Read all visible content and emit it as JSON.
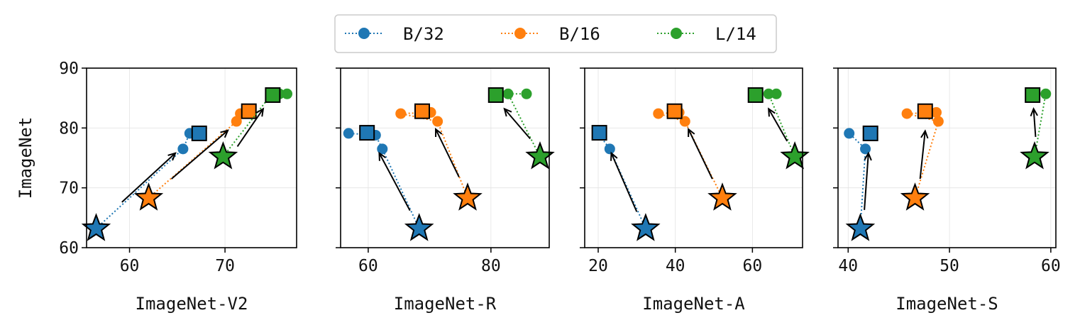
{
  "colors": {
    "B/32": "#1f77b4",
    "B/16": "#ff7f0e",
    "L/14": "#2ca02c"
  },
  "legend": {
    "placement": "top-center",
    "entries": [
      "B/32",
      "B/16",
      "L/14"
    ]
  },
  "chart_data": [
    {
      "type": "scatter",
      "xlabel": "ImageNet-V2",
      "ylabel": "ImageNet",
      "xlim": [
        55.5,
        77.5
      ],
      "ylim": [
        60,
        90
      ],
      "xticks": [
        60,
        70
      ],
      "yticks": [
        60,
        70,
        80,
        90
      ],
      "grid": true,
      "series": [
        {
          "name": "B/32",
          "points": [
            [
              65.6,
              76.5
            ],
            [
              66.3,
              79.1
            ],
            [
              66.8,
              79.2
            ]
          ],
          "square": [
            67.3,
            79.1
          ],
          "star": [
            56.5,
            63.2
          ]
        },
        {
          "name": "B/16",
          "points": [
            [
              71.2,
              81.1
            ],
            [
              71.6,
              82.4
            ],
            [
              72.4,
              82.6
            ]
          ],
          "square": [
            72.5,
            82.8
          ],
          "star": [
            62.0,
            68.3
          ]
        },
        {
          "name": "L/14",
          "points": [
            [
              74.8,
              85.5
            ],
            [
              75.7,
              85.7
            ],
            [
              76.5,
              85.7
            ]
          ],
          "square": [
            75.0,
            85.5
          ],
          "star": [
            69.8,
            75.2
          ]
        }
      ],
      "arrows": [
        {
          "from": [
            59.2,
            67.6
          ],
          "to": [
            64.8,
            75.8
          ]
        },
        {
          "from": [
            64.4,
            71.5
          ],
          "to": [
            70.3,
            79.6
          ]
        },
        {
          "from": [
            71.3,
            76.9
          ],
          "to": [
            74.0,
            83.2
          ]
        }
      ]
    },
    {
      "type": "scatter",
      "xlabel": "ImageNet-R",
      "xlim": [
        55.5,
        89.5
      ],
      "ylim": [
        60,
        90
      ],
      "xticks": [
        60,
        80
      ],
      "yticks": [
        60,
        70,
        80,
        90
      ],
      "grid": true,
      "series": [
        {
          "name": "B/32",
          "points": [
            [
              56.8,
              79.1
            ],
            [
              61.2,
              78.8
            ],
            [
              62.3,
              76.5
            ]
          ],
          "square": [
            59.8,
            79.2
          ],
          "star": [
            68.3,
            63.2
          ]
        },
        {
          "name": "B/16",
          "points": [
            [
              65.3,
              82.4
            ],
            [
              70.2,
              82.6
            ],
            [
              71.3,
              81.1
            ]
          ],
          "square": [
            68.8,
            82.8
          ],
          "star": [
            76.2,
            68.3
          ]
        },
        {
          "name": "L/14",
          "points": [
            [
              82.8,
              85.7
            ],
            [
              85.8,
              85.7
            ]
          ],
          "square": [
            80.8,
            85.5
          ],
          "star": [
            88.0,
            75.2
          ]
        }
      ],
      "arrows": [
        {
          "from": [
            66.8,
            66.2
          ],
          "to": [
            61.8,
            75.8
          ]
        },
        {
          "from": [
            74.8,
            71.8
          ],
          "to": [
            71.0,
            79.8
          ]
        },
        {
          "from": [
            86.4,
            78.2
          ],
          "to": [
            82.2,
            83.2
          ]
        }
      ]
    },
    {
      "type": "scatter",
      "xlabel": "ImageNet-A",
      "xlim": [
        16.5,
        73.0
      ],
      "ylim": [
        60,
        90
      ],
      "xticks": [
        20,
        40,
        60
      ],
      "yticks": [
        60,
        70,
        80,
        90
      ],
      "grid": true,
      "series": [
        {
          "name": "B/32",
          "points": [
            [
              20.0,
              79.1
            ],
            [
              23.0,
              76.5
            ]
          ],
          "square": [
            20.3,
            79.2
          ],
          "star": [
            32.3,
            63.2
          ]
        },
        {
          "name": "B/16",
          "points": [
            [
              35.6,
              82.4
            ],
            [
              41.0,
              82.6
            ],
            [
              42.5,
              81.1
            ]
          ],
          "square": [
            39.8,
            82.8
          ],
          "star": [
            52.2,
            68.3
          ]
        },
        {
          "name": "L/14",
          "points": [
            [
              64.2,
              85.7
            ],
            [
              66.2,
              85.7
            ]
          ],
          "square": [
            60.8,
            85.5
          ],
          "star": [
            71.0,
            75.2
          ]
        }
      ],
      "arrows": [
        {
          "from": [
            30.0,
            66.0
          ],
          "to": [
            23.4,
            75.8
          ]
        },
        {
          "from": [
            49.6,
            71.5
          ],
          "to": [
            43.4,
            79.8
          ]
        },
        {
          "from": [
            69.0,
            77.8
          ],
          "to": [
            64.2,
            83.2
          ]
        }
      ]
    },
    {
      "type": "scatter",
      "xlabel": "ImageNet-S",
      "xlim": [
        39.0,
        60.5
      ],
      "ylim": [
        60,
        90
      ],
      "xticks": [
        40,
        50,
        60
      ],
      "yticks": [
        60,
        70,
        80,
        90
      ],
      "grid": true,
      "series": [
        {
          "name": "B/32",
          "points": [
            [
              40.1,
              79.1
            ],
            [
              41.7,
              76.5
            ]
          ],
          "square": [
            42.2,
            79.1
          ],
          "star": [
            41.2,
            63.2
          ]
        },
        {
          "name": "B/16",
          "points": [
            [
              45.8,
              82.4
            ],
            [
              48.7,
              82.6
            ],
            [
              48.9,
              81.1
            ]
          ],
          "square": [
            47.6,
            82.8
          ],
          "star": [
            46.6,
            68.3
          ]
        },
        {
          "name": "L/14",
          "points": [
            [
              59.5,
              85.7
            ]
          ],
          "square": [
            58.2,
            85.5
          ],
          "star": [
            58.4,
            75.2
          ]
        }
      ],
      "arrows": [
        {
          "from": [
            41.6,
            66.3
          ],
          "to": [
            42.0,
            75.8
          ]
        },
        {
          "from": [
            47.1,
            71.5
          ],
          "to": [
            47.6,
            79.5
          ]
        },
        {
          "from": [
            58.5,
            78.5
          ],
          "to": [
            58.3,
            83.2
          ]
        }
      ]
    }
  ]
}
